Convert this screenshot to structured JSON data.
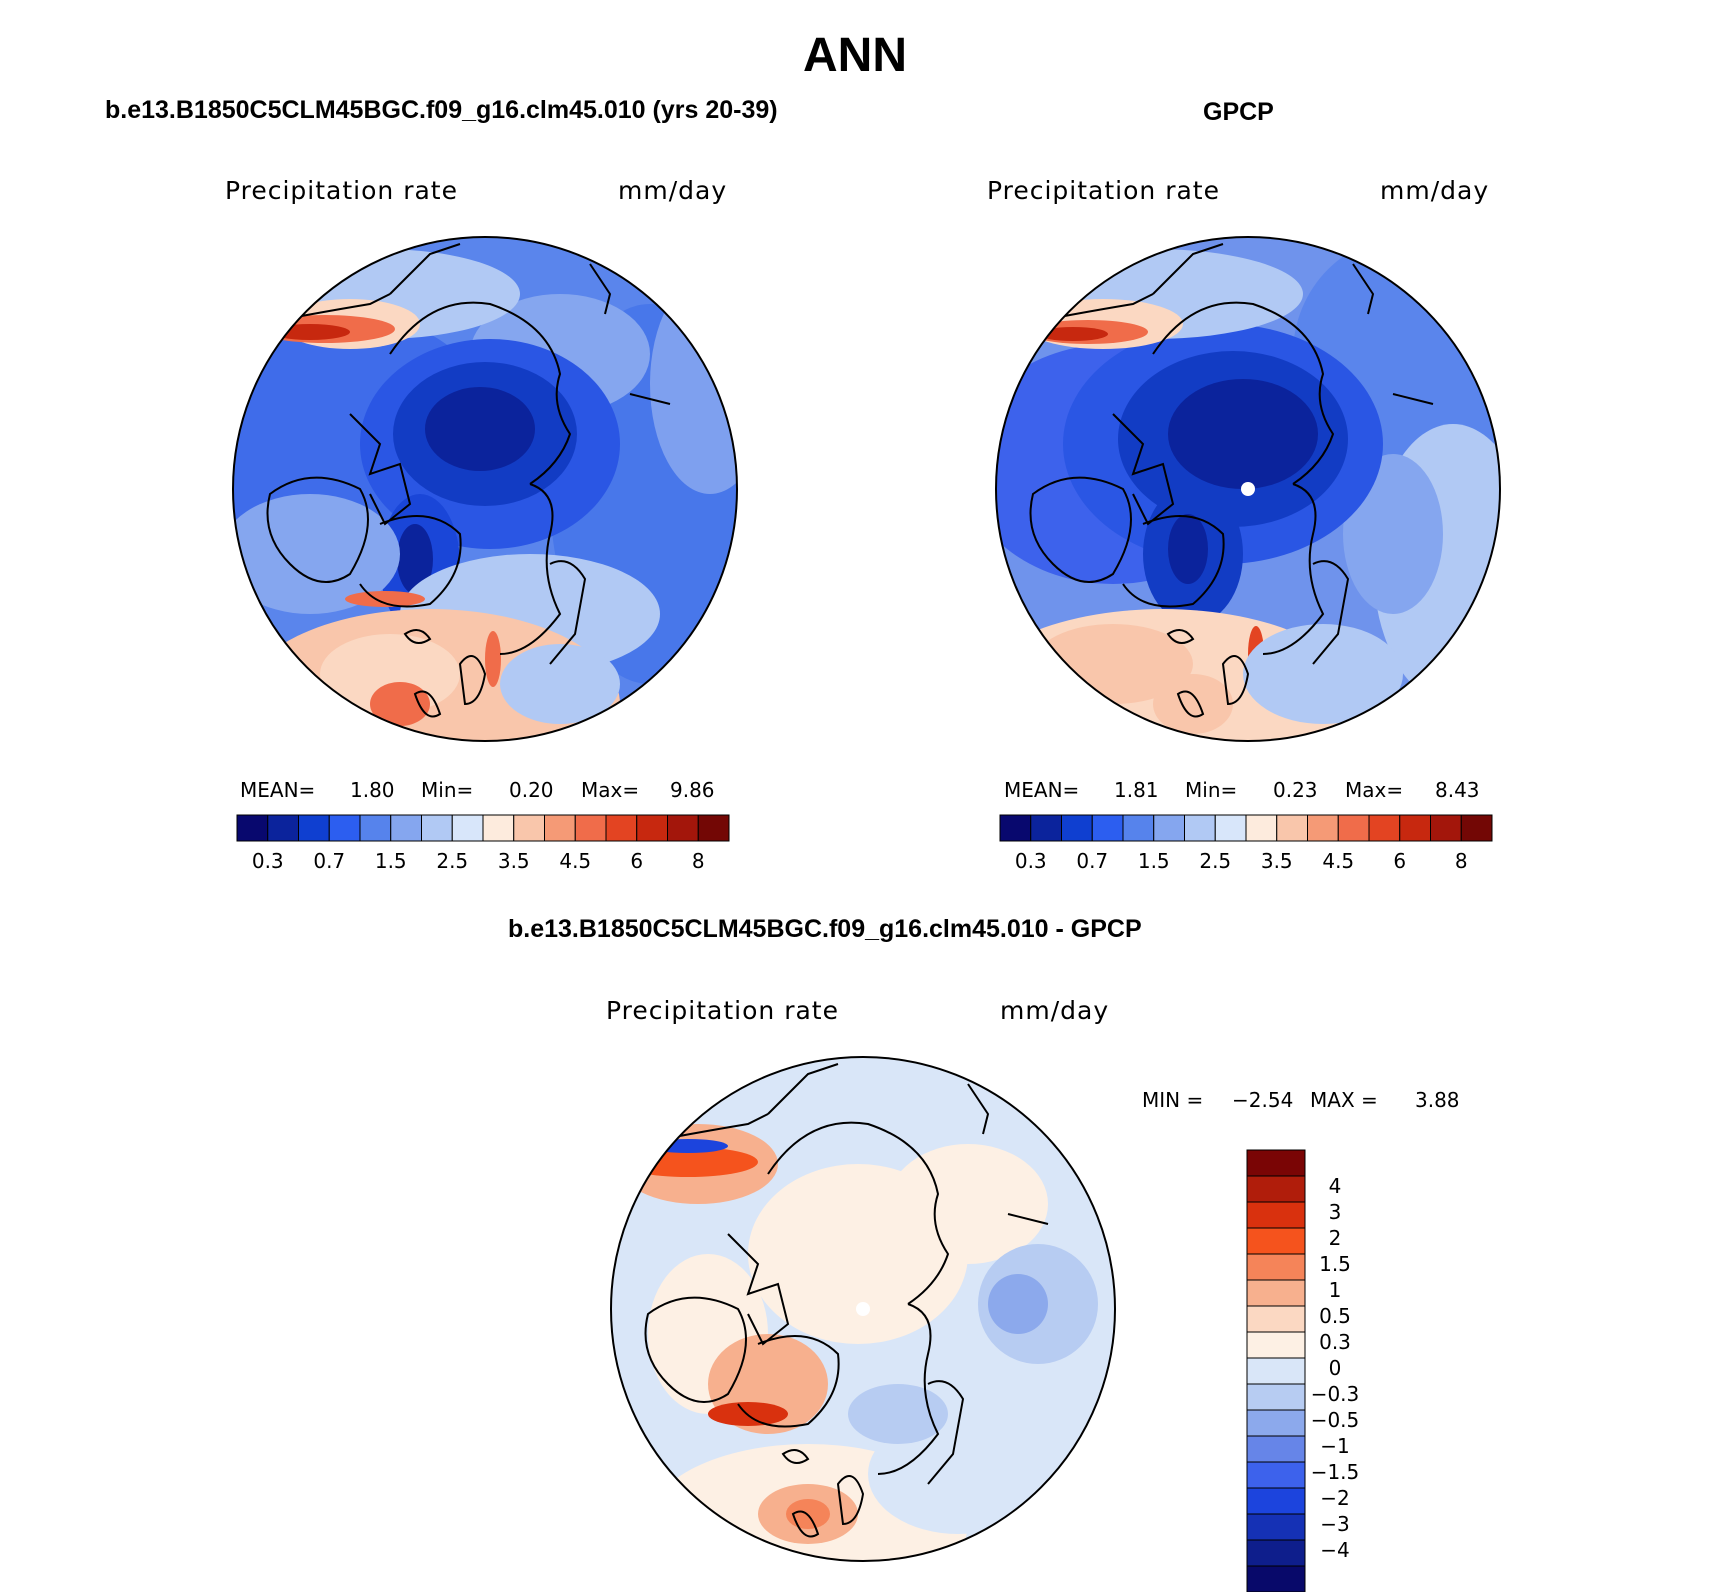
{
  "title": "ANN",
  "panels": {
    "model": {
      "title": "b.e13.B1850C5CLM45BGC.f09_g16.clm45.010 (yrs 20-39)",
      "variable": "Precipitation rate",
      "units": "mm/day",
      "stats": {
        "mean_label": "MEAN=",
        "mean": "1.80",
        "min_label": "Min=",
        "min": "0.20",
        "max_label": "Max=",
        "max": "9.86"
      }
    },
    "obs": {
      "title": "GPCP",
      "variable": "Precipitation rate",
      "units": "mm/day",
      "stats": {
        "mean_label": "MEAN=",
        "mean": "1.81",
        "min_label": "Min=",
        "min": "0.23",
        "max_label": "Max=",
        "max": "8.43"
      }
    },
    "diff": {
      "title": "b.e13.B1850C5CLM45BGC.f09_g16.clm45.010 - GPCP",
      "variable": "Precipitation rate",
      "units": "mm/day",
      "stats": {
        "min_label": "MIN =",
        "min": "−2.54",
        "max_label": "MAX =",
        "max": "3.88"
      }
    }
  },
  "colorbar_abs": {
    "colors": [
      "#08086e",
      "#0b239c",
      "#0f3fd0",
      "#2c5ef0",
      "#5683ec",
      "#85a6ef",
      "#b1c9f4",
      "#d8e6fa",
      "#fdebdd",
      "#f9c6ab",
      "#f59a76",
      "#f06c4a",
      "#e34422",
      "#c7280f",
      "#a3160b",
      "#730705"
    ],
    "tick_labels": [
      "0.3",
      "0.7",
      "1.5",
      "2.5",
      "3.5",
      "4.5",
      "6",
      "8"
    ]
  },
  "colorbar_diff": {
    "colors": [
      "#7a0505",
      "#b01d0b",
      "#d9310e",
      "#f5531d",
      "#f58459",
      "#f7b08e",
      "#fbd8c2",
      "#fdf0e4",
      "#d9e6f8",
      "#b7ccf2",
      "#8ca9ec",
      "#6685e8",
      "#3d62ec",
      "#1c44dd",
      "#1531b5",
      "#0e1e8c",
      "#08096a"
    ],
    "tick_labels": [
      "4",
      "3",
      "2",
      "1.5",
      "1",
      "0.5",
      "0.3",
      "0",
      "−0.3",
      "−0.5",
      "−1",
      "−1.5",
      "−2",
      "−3",
      "−4"
    ]
  }
}
